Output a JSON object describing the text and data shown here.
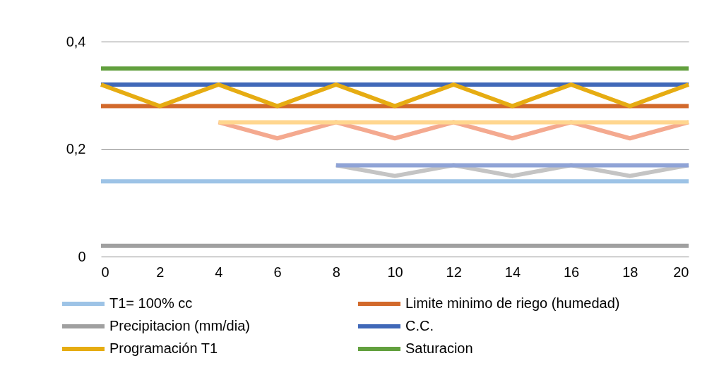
{
  "chart_data": {
    "type": "line",
    "x": [
      0,
      2,
      4,
      6,
      8,
      10,
      12,
      14,
      16,
      18,
      20
    ],
    "series": [
      {
        "name": "T1= 100% cc",
        "color": "#9dc3e6",
        "values": [
          0.14,
          0.14,
          0.14,
          0.14,
          0.14,
          0.14,
          0.14,
          0.14,
          0.14,
          0.14,
          0.14
        ]
      },
      {
        "name": "Limite minimo de riego (humedad)",
        "color": "#d2692b",
        "values": [
          0.28,
          0.28,
          0.28,
          0.28,
          0.28,
          0.28,
          0.28,
          0.28,
          0.28,
          0.28,
          0.28
        ]
      },
      {
        "name": "Precipitacion (mm/dia)",
        "color": "#a0a0a0",
        "values": [
          0.02,
          0.02,
          0.02,
          0.02,
          0.02,
          0.02,
          0.02,
          0.02,
          0.02,
          0.02,
          0.02
        ]
      },
      {
        "color": "#f4a98f",
        "values": [
          null,
          null,
          0.25,
          0.22,
          0.25,
          0.22,
          0.25,
          0.22,
          0.25,
          0.22,
          0.25
        ]
      },
      {
        "color": "#ffd68f",
        "values": [
          null,
          null,
          0.25,
          0.25,
          0.25,
          0.25,
          0.25,
          0.25,
          0.25,
          0.25,
          0.25
        ]
      },
      {
        "color": "#c4c4c4",
        "values": [
          null,
          null,
          null,
          null,
          0.17,
          0.15,
          0.17,
          0.15,
          0.17,
          0.15,
          0.17
        ]
      },
      {
        "color": "#8fa3d6",
        "values": [
          null,
          null,
          null,
          null,
          0.17,
          0.17,
          0.17,
          0.17,
          0.17,
          0.17,
          0.17
        ]
      },
      {
        "name": "C.C.",
        "color": "#4068b8",
        "values": [
          0.32,
          0.32,
          0.32,
          0.32,
          0.32,
          0.32,
          0.32,
          0.32,
          0.32,
          0.32,
          0.32
        ]
      },
      {
        "name": "Programación T1",
        "color": "#e6ac12",
        "values": [
          0.32,
          0.28,
          0.32,
          0.28,
          0.32,
          0.28,
          0.32,
          0.28,
          0.32,
          0.28,
          0.32
        ]
      },
      {
        "name": "Saturacion",
        "color": "#62a03e",
        "values": [
          0.35,
          0.35,
          0.35,
          0.35,
          0.35,
          0.35,
          0.35,
          0.35,
          0.35,
          0.35,
          0.35
        ]
      }
    ],
    "xlim": [
      0,
      20
    ],
    "xticks": [
      0,
      2,
      4,
      6,
      8,
      10,
      12,
      14,
      16,
      18,
      20
    ],
    "ylim": [
      0,
      0.4
    ],
    "yticks": [
      {
        "value": 0,
        "label": "0"
      },
      {
        "value": 0.2,
        "label": "0,2"
      },
      {
        "value": 0.4,
        "label": "0,4"
      }
    ],
    "grid": "y",
    "legend": "bottom",
    "marker": "none",
    "line_style": "solid"
  }
}
